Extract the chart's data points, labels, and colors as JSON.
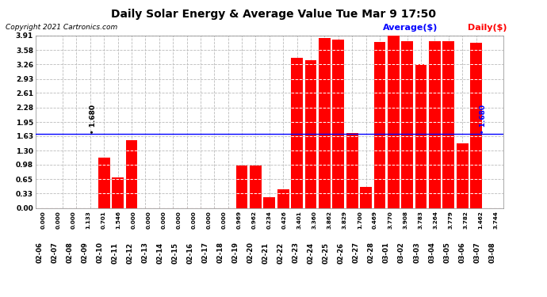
{
  "title": "Daily Solar Energy & Average Value Tue Mar 9 17:50",
  "copyright": "Copyright 2021 Cartronics.com",
  "legend_average": "Average($)",
  "legend_daily": "Daily($)",
  "average_value": 1.68,
  "categories": [
    "02-06",
    "02-07",
    "02-08",
    "02-09",
    "02-10",
    "02-11",
    "02-12",
    "02-13",
    "02-14",
    "02-15",
    "02-16",
    "02-17",
    "02-18",
    "02-19",
    "02-20",
    "02-21",
    "02-22",
    "02-23",
    "02-24",
    "02-25",
    "02-26",
    "02-27",
    "02-28",
    "03-01",
    "03-02",
    "03-03",
    "03-04",
    "03-05",
    "03-06",
    "03-07",
    "03-08"
  ],
  "values": [
    0.0,
    0.0,
    0.0,
    1.133,
    0.701,
    1.546,
    0.0,
    0.0,
    0.0,
    0.0,
    0.0,
    0.0,
    0.0,
    0.969,
    0.962,
    0.234,
    0.426,
    3.401,
    3.36,
    3.862,
    3.829,
    1.7,
    0.469,
    3.77,
    3.908,
    3.783,
    3.264,
    3.779,
    3.782,
    1.462,
    3.744
  ],
  "bar_color": "#ff0000",
  "avg_line_color": "#0000ff",
  "avg_label_color": "#0000ff",
  "daily_label_color": "#ff0000",
  "title_color": "#000000",
  "background_color": "#ffffff",
  "grid_color": "#bbbbbb",
  "ylim": [
    0.0,
    3.91
  ],
  "yticks": [
    0.0,
    0.33,
    0.65,
    0.98,
    1.3,
    1.63,
    1.95,
    2.28,
    2.61,
    2.93,
    3.26,
    3.58,
    3.91
  ]
}
